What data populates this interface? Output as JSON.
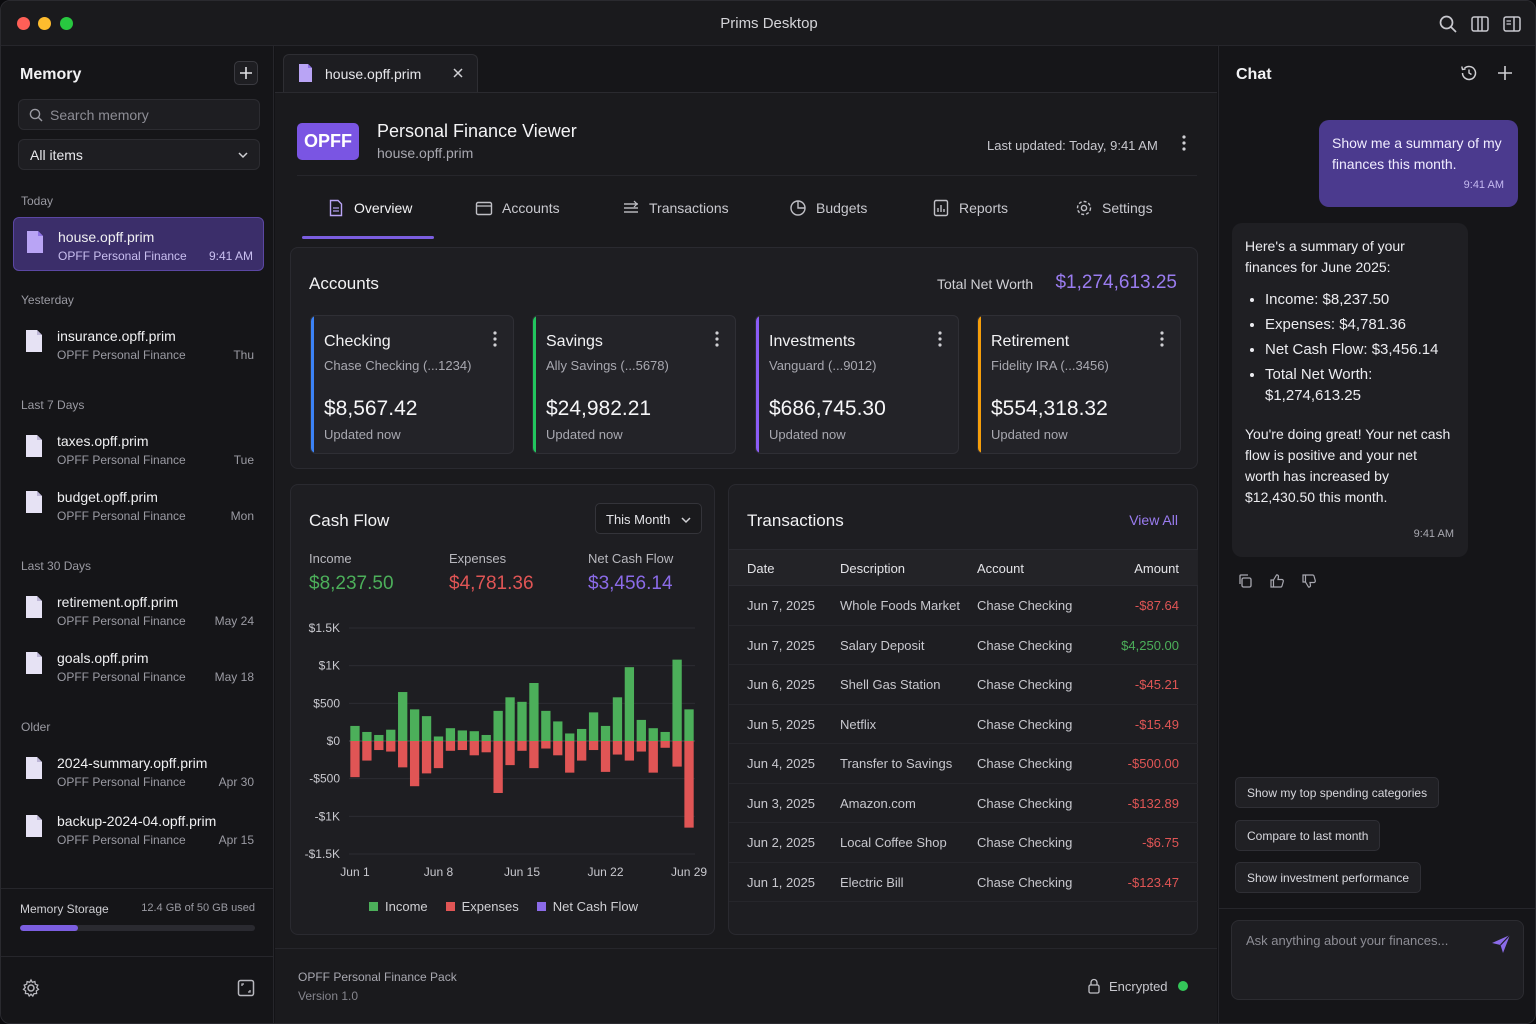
{
  "window": {
    "title": "Prims Desktop"
  },
  "sidebar": {
    "title": "Memory",
    "search_placeholder": "Search memory",
    "filter": "All items",
    "groups": {
      "today": "Today",
      "yesterday": "Yesterday",
      "last7": "Last 7 Days",
      "last30": "Last 30 Days",
      "older": "Older"
    },
    "items": [
      {
        "name": "house.opff.prim",
        "sub": "OPFF Personal Finance",
        "time": "9:41 AM"
      },
      {
        "name": "insurance.opff.prim",
        "sub": "OPFF Personal Finance",
        "time": "Thu"
      },
      {
        "name": "taxes.opff.prim",
        "sub": "OPFF Personal Finance",
        "time": "Tue"
      },
      {
        "name": "budget.opff.prim",
        "sub": "OPFF Personal Finance",
        "time": "Mon"
      },
      {
        "name": "retirement.opff.prim",
        "sub": "OPFF Personal Finance",
        "time": "May 24"
      },
      {
        "name": "goals.opff.prim",
        "sub": "OPFF Personal Finance",
        "time": "May 18"
      },
      {
        "name": "2024-summary.opff.prim",
        "sub": "OPFF Personal Finance",
        "time": "Apr 30"
      },
      {
        "name": "backup-2024-04.opff.prim",
        "sub": "OPFF Personal Finance",
        "time": "Apr 15"
      }
    ],
    "storage": {
      "label": "Memory Storage",
      "value": "12.4 GB of 50 GB used",
      "fraction": 0.248
    }
  },
  "tab": {
    "label": "house.opff.prim"
  },
  "viewer": {
    "badge": "OPFF",
    "title": "Personal Finance Viewer",
    "subtitle": "house.opff.prim",
    "last_updated": "Last updated: Today, 9:41 AM",
    "tabs": [
      "Overview",
      "Accounts",
      "Transactions",
      "Budgets",
      "Reports",
      "Settings"
    ]
  },
  "accounts": {
    "title": "Accounts",
    "net_worth_label": "Total Net Worth",
    "net_worth": "$1,274,613.25",
    "cards": [
      {
        "name": "Checking",
        "inst": "Chase Checking (...1234)",
        "balance": "$8,567.42",
        "updated": "Updated now",
        "color": "#3b82f6"
      },
      {
        "name": "Savings",
        "inst": "Ally Savings (...5678)",
        "balance": "$24,982.21",
        "updated": "Updated now",
        "color": "#22c55e"
      },
      {
        "name": "Investments",
        "inst": "Vanguard (...9012)",
        "balance": "$686,745.30",
        "updated": "Updated now",
        "color": "#8b5cf6"
      },
      {
        "name": "Retirement",
        "inst": "Fidelity IRA (...3456)",
        "balance": "$554,318.32",
        "updated": "Updated now",
        "color": "#f59e0b"
      }
    ]
  },
  "cashflow": {
    "title": "Cash Flow",
    "period": "This Month",
    "income_label": "Income",
    "income": "$8,237.50",
    "expenses_label": "Expenses",
    "expenses": "$4,781.36",
    "net_label": "Net Cash Flow",
    "net": "$3,456.14",
    "colors": {
      "income": "#4caf5a",
      "expenses": "#e05555",
      "net": "#8b6be8"
    }
  },
  "chart_data": {
    "type": "bar",
    "title": "",
    "ylim": [
      -1500,
      1500
    ],
    "y_ticks": [
      "$1.5K",
      "$1K",
      "$500",
      "$0",
      "-$500",
      "-$1K",
      "-$1.5K"
    ],
    "x_tick_labels": [
      "Jun 1",
      "Jun 8",
      "Jun 15",
      "Jun 22",
      "Jun 29"
    ],
    "legend": [
      "Income",
      "Expenses",
      "Net Cash Flow"
    ],
    "series": [
      {
        "name": "Income",
        "values": [
          200,
          120,
          80,
          150,
          650,
          420,
          330,
          60,
          170,
          140,
          130,
          80,
          400,
          580,
          520,
          770,
          400,
          260,
          100,
          160,
          380,
          200,
          580,
          980,
          280,
          170,
          120,
          1080,
          420
        ]
      },
      {
        "name": "Expenses",
        "values": [
          -480,
          -260,
          -120,
          -140,
          -350,
          -600,
          -430,
          -360,
          -130,
          -120,
          -190,
          -150,
          -690,
          -320,
          -130,
          -360,
          -100,
          -190,
          -420,
          -260,
          -120,
          -410,
          -180,
          -260,
          -140,
          -420,
          -90,
          -340,
          -1150
        ]
      }
    ]
  },
  "transactions": {
    "title": "Transactions",
    "view_all": "View All",
    "headers": {
      "date": "Date",
      "desc": "Description",
      "account": "Account",
      "amount": "Amount"
    },
    "rows": [
      {
        "date": "Jun 7, 2025",
        "desc": "Whole Foods Market",
        "account": "Chase Checking",
        "amount": "-$87.64",
        "positive": false
      },
      {
        "date": "Jun 7, 2025",
        "desc": "Salary Deposit",
        "account": "Chase Checking",
        "amount": "$4,250.00",
        "positive": true
      },
      {
        "date": "Jun 6, 2025",
        "desc": "Shell Gas Station",
        "account": "Chase Checking",
        "amount": "-$45.21",
        "positive": false
      },
      {
        "date": "Jun 5, 2025",
        "desc": "Netflix",
        "account": "Chase Checking",
        "amount": "-$15.49",
        "positive": false
      },
      {
        "date": "Jun 4, 2025",
        "desc": "Transfer to Savings",
        "account": "Chase Checking",
        "amount": "-$500.00",
        "positive": false
      },
      {
        "date": "Jun 3, 2025",
        "desc": "Amazon.com",
        "account": "Chase Checking",
        "amount": "-$132.89",
        "positive": false
      },
      {
        "date": "Jun 2, 2025",
        "desc": "Local Coffee Shop",
        "account": "Chase Checking",
        "amount": "-$6.75",
        "positive": false
      },
      {
        "date": "Jun 1, 2025",
        "desc": "Electric Bill",
        "account": "Chase Checking",
        "amount": "-$123.47",
        "positive": false
      }
    ]
  },
  "footer": {
    "pack": "OPFF Personal Finance Pack",
    "version": "Version 1.0",
    "encrypted": "Encrypted"
  },
  "chat": {
    "title": "Chat",
    "user_message": "Show me a summary of my finances this month.",
    "user_time": "9:41 AM",
    "ai_intro": "Here's a summary of your finances for June 2025:",
    "ai_bullets": [
      "Income: $8,237.50",
      "Expenses:  $4,781.36",
      "Net Cash Flow: $3,456.14",
      "Total Net Worth: $1,274,613.25"
    ],
    "ai_outro": "You're doing great! Your net cash flow is positive and your net worth has increased by $12,430.50 this month.",
    "ai_time": "9:41 AM",
    "suggestions": [
      "Show my top spending categories",
      "Compare to last month",
      "Show investment performance"
    ],
    "input_placeholder": "Ask anything about your finances..."
  }
}
